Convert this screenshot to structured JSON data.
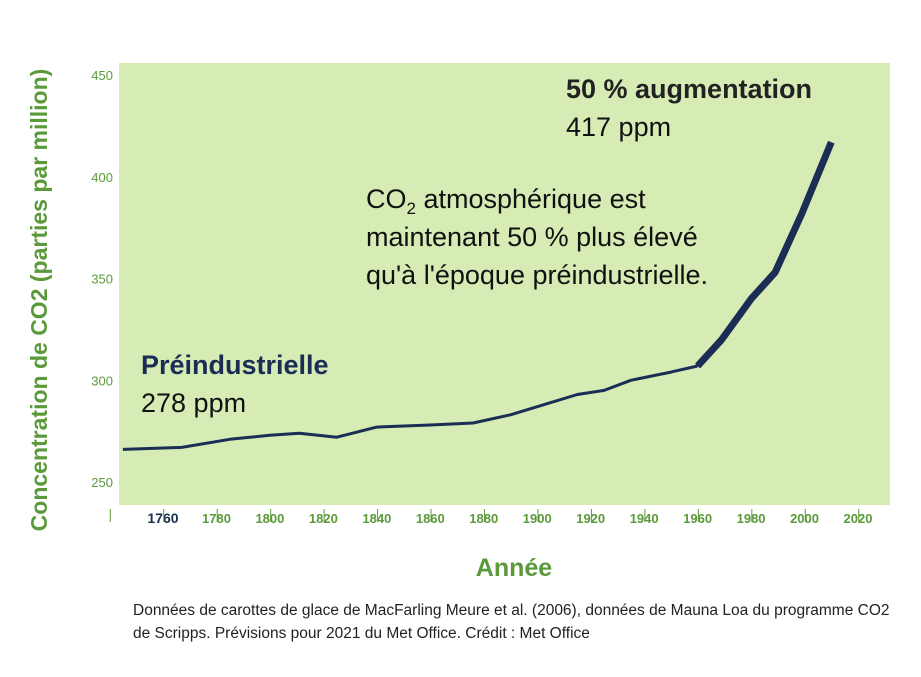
{
  "chart_data": {
    "type": "line",
    "title": "",
    "xlabel": "Année",
    "ylabel": "Concentration de CO2 (parties par million)",
    "x_ticks": [
      1760,
      1780,
      1800,
      1820,
      1840,
      1860,
      1880,
      1900,
      1920,
      1940,
      1960,
      1980,
      2000,
      2020
    ],
    "y_ticks": [
      250,
      300,
      350,
      400,
      450
    ],
    "xlim": [
      1750,
      2030
    ],
    "ylim": [
      240,
      455
    ],
    "grid": false,
    "colors": {
      "background": "#d6ecb4",
      "line": "#1a2e55",
      "axis_text": "#5a9a3a"
    },
    "series": [
      {
        "values_x": [
          1745,
          1767,
          1785,
          1800,
          1811,
          1825,
          1840,
          1860,
          1876,
          1890,
          1900,
          1915,
          1925,
          1935,
          1950,
          1960
        ],
        "values_y": [
          266,
          267,
          271,
          273,
          274,
          272,
          277,
          278,
          279,
          283,
          287,
          293,
          295,
          300,
          304,
          307
        ]
      },
      {
        "values_x": [
          1960,
          1969,
          1980,
          1989,
          1999,
          2010
        ],
        "values_y": [
          307,
          320,
          340,
          353,
          382,
          417
        ]
      }
    ]
  },
  "annotations": {
    "preindustrial_label": "Préindustrielle",
    "preindustrial_value": "278 ppm",
    "increase_label": "50 % augmentation",
    "increase_value": "417 ppm",
    "desc_co": "CO",
    "desc_sub": "2",
    "desc_rest": " atmosphérique est maintenant 50 % plus élevé qu'à l'époque préindustrielle."
  },
  "credit": "Données de carottes de glace de MacFarling Meure et al. (2006), données de Mauna Loa du programme CO2 de Scripps. Prévisions pour 2021 du Met Office. Crédit : Met Office"
}
